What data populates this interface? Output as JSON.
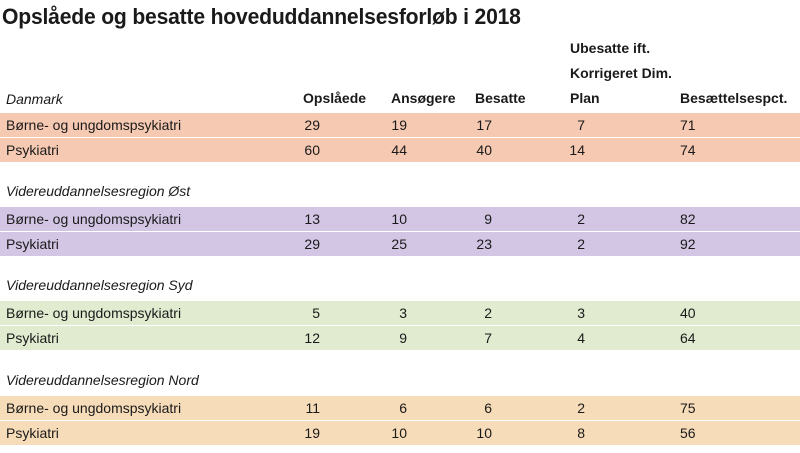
{
  "title": "Opslåede og besatte hoveduddannelsesforløb i 2018",
  "columns": {
    "opslaaede": "Opslåede",
    "ansoegere": "Ansøgere",
    "besatte": "Besatte",
    "ubesatte_line1": "Ubesatte ift.",
    "ubesatte_line2": "Korrigeret Dim.",
    "ubesatte_line3": "Plan",
    "besaettelsespct": "Besættelsespct."
  },
  "colors": {
    "danmark": "#f5c9b2",
    "oest": "#d2c6e4",
    "syd": "#e0ebd0",
    "nord": "#f7dcb9"
  },
  "sections": [
    {
      "label": "Danmark",
      "rows": [
        {
          "name": "Børne- og ungdomspsykiatri",
          "opslaaede": "29",
          "ansoegere": "19",
          "besatte": "17",
          "ubesatte": "7",
          "pct": "71"
        },
        {
          "name": "Psykiatri",
          "opslaaede": "60",
          "ansoegere": "44",
          "besatte": "40",
          "ubesatte": "14",
          "pct": "74"
        }
      ]
    },
    {
      "label": "Videreuddannelsesregion Øst",
      "rows": [
        {
          "name": "Børne- og ungdomspsykiatri",
          "opslaaede": "13",
          "ansoegere": "10",
          "besatte": "9",
          "ubesatte": "2",
          "pct": "82"
        },
        {
          "name": "Psykiatri",
          "opslaaede": "29",
          "ansoegere": "25",
          "besatte": "23",
          "ubesatte": "2",
          "pct": "92"
        }
      ]
    },
    {
      "label": "Videreuddannelsesregion Syd",
      "rows": [
        {
          "name": "Børne- og ungdomspsykiatri",
          "opslaaede": "5",
          "ansoegere": "3",
          "besatte": "2",
          "ubesatte": "3",
          "pct": "40"
        },
        {
          "name": "Psykiatri",
          "opslaaede": "12",
          "ansoegere": "9",
          "besatte": "7",
          "ubesatte": "4",
          "pct": "64"
        }
      ]
    },
    {
      "label": "Videreuddannelsesregion Nord",
      "rows": [
        {
          "name": "Børne- og ungdomspsykiatri",
          "opslaaede": "11",
          "ansoegere": "6",
          "besatte": "6",
          "ubesatte": "2",
          "pct": "75"
        },
        {
          "name": "Psykiatri",
          "opslaaede": "19",
          "ansoegere": "10",
          "besatte": "10",
          "ubesatte": "8",
          "pct": "56"
        }
      ]
    }
  ]
}
